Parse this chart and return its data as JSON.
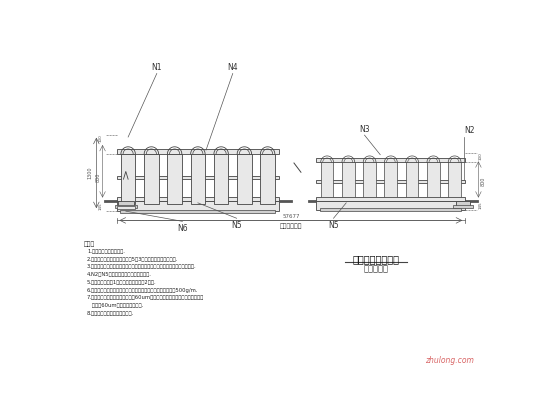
{
  "title": "交口处护栏立面图",
  "subtitle": "绿化渐变段",
  "line_color": "#444444",
  "dim_color": "#555555",
  "fill_light": "#e8e8e8",
  "fill_mid": "#d0d0d0",
  "fill_dark": "#bbbbbb",
  "notes_title": "说明：",
  "notes": [
    "1.本图尺寸均以毫米为计.",
    "2.交口处中央防撞护栏绿化，距5标3平衡束，需美化加固所求.",
    "3.反光片为三层护栏一层，一般分两侧各一块（每层护栏一块立柱两侧固点）.",
    "4.N2与N5接辊左力的所有金辊及留顶辊.",
    "5.护栏安装应保持1排平，不平度不大于2毫米.",
    "6.所有钢辊均磨平，然后依桩功须用直流碳钢辊光理，碳锌量为500g/m.",
    "7.防腐采用环氧底层钢底面涂度（60um），药橡胶可发油橡胶加换用豆腐面底",
    "   涂度（60um），面漆为乳白色.",
    "8.工程量单项正常路面工程费量."
  ],
  "label_N1": "N1",
  "label_N2": "N2",
  "label_N3": "N3",
  "label_N4": "N4",
  "label_N5a": "N5",
  "label_N5b": "N5",
  "label_N6": "N6",
  "bottom_label": "预置镀锌底座",
  "dim_overall": "57677",
  "dim_left_total": "1300",
  "dim_left_mid": "800",
  "dim_left_top": "100",
  "dim_left_bot": "145",
  "dim_right_top": "100",
  "dim_right_mid": "800",
  "dim_right_bot": "145"
}
